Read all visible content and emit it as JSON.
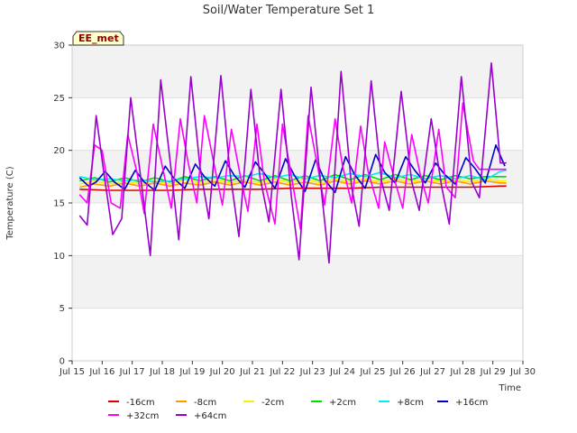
{
  "chart_data": {
    "type": "line",
    "title": "Soil/Water Temperature Set 1",
    "xlabel": "Time",
    "ylabel": "Temperature (C)",
    "badge": "EE_met",
    "xlim": [
      15,
      30
    ],
    "ylim": [
      0,
      30
    ],
    "x_ticks": [
      15,
      16,
      17,
      18,
      19,
      20,
      21,
      22,
      23,
      24,
      25,
      26,
      27,
      28,
      29,
      30
    ],
    "x_tick_labels": [
      "Jul 15",
      "Jul 16",
      "Jul 17",
      "Jul 18",
      "Jul 19",
      "Jul 20",
      "Jul 21",
      "Jul 22",
      "Jul 23",
      "Jul 24",
      "Jul 25",
      "Jul 26",
      "Jul 27",
      "Jul 28",
      "Jul 29",
      "Jul 30"
    ],
    "y_ticks": [
      0,
      5,
      10,
      15,
      20,
      25,
      30
    ],
    "y_tick_labels": [
      "0",
      "5",
      "10",
      "15",
      "20",
      "25",
      "30"
    ],
    "banded_background": true,
    "legend_placement": "bottom",
    "series": [
      {
        "name": "-16cm",
        "color": "#dd0000",
        "x": [
          15.25,
          16.25,
          17.25,
          18.25,
          19.25,
          20.25,
          21.25,
          22.25,
          23.25,
          24.25,
          25.25,
          26.25,
          27.25,
          28.25,
          29.25,
          29.45
        ],
        "y": [
          16.3,
          16.2,
          16.2,
          16.2,
          16.3,
          16.3,
          16.3,
          16.4,
          16.4,
          16.4,
          16.5,
          16.5,
          16.5,
          16.5,
          16.6,
          16.6
        ]
      },
      {
        "name": "-8cm",
        "color": "#ff9900",
        "x": [
          15.25,
          15.75,
          16.25,
          16.75,
          17.25,
          17.75,
          18.25,
          18.75,
          19.25,
          19.75,
          20.25,
          20.75,
          21.25,
          21.75,
          22.25,
          22.75,
          23.25,
          23.75,
          24.25,
          24.75,
          25.25,
          25.75,
          26.25,
          26.75,
          27.25,
          27.75,
          28.25,
          28.75,
          29.25,
          29.45
        ],
        "y": [
          16.5,
          16.8,
          16.6,
          16.9,
          16.6,
          16.9,
          16.6,
          16.9,
          16.7,
          17.0,
          16.7,
          17.0,
          16.7,
          17.0,
          16.7,
          17.0,
          16.7,
          17.1,
          16.8,
          17.1,
          16.8,
          17.1,
          16.8,
          17.1,
          16.8,
          17.1,
          16.8,
          17.1,
          16.9,
          16.9
        ]
      },
      {
        "name": "-2cm",
        "color": "#ffee00",
        "x": [
          15.25,
          15.75,
          16.25,
          16.75,
          17.25,
          17.75,
          18.25,
          18.75,
          19.25,
          19.75,
          20.25,
          20.75,
          21.25,
          21.75,
          22.25,
          22.75,
          23.25,
          23.75,
          24.25,
          24.75,
          25.25,
          25.75,
          26.25,
          26.75,
          27.25,
          27.75,
          28.25,
          28.75,
          29.25,
          29.45
        ],
        "y": [
          16.8,
          17.1,
          16.8,
          17.1,
          16.8,
          17.1,
          16.8,
          17.2,
          16.9,
          17.2,
          16.9,
          17.2,
          16.9,
          17.3,
          16.9,
          17.3,
          16.9,
          17.3,
          17.0,
          17.3,
          17.0,
          17.3,
          17.0,
          17.3,
          17.0,
          17.3,
          17.0,
          17.3,
          17.1,
          17.1
        ]
      },
      {
        "name": "+2cm",
        "color": "#00dd00",
        "x": [
          15.25,
          15.75,
          16.25,
          16.75,
          17.25,
          17.75,
          18.25,
          18.75,
          19.25,
          19.75,
          20.25,
          20.75,
          21.25,
          21.75,
          22.25,
          22.75,
          23.25,
          23.75,
          24.25,
          24.75,
          25.25,
          25.75,
          26.25,
          26.75,
          27.25,
          27.75,
          28.25,
          28.75,
          29.25,
          29.45
        ],
        "y": [
          17.1,
          17.4,
          17.0,
          17.4,
          17.0,
          17.4,
          17.0,
          17.5,
          17.1,
          17.5,
          17.1,
          17.6,
          17.1,
          17.6,
          17.1,
          17.6,
          17.1,
          17.7,
          17.2,
          17.7,
          17.2,
          17.7,
          17.2,
          17.6,
          17.2,
          17.6,
          17.3,
          17.5,
          17.5,
          17.5
        ]
      },
      {
        "name": "+8cm",
        "color": "#00eeee",
        "x": [
          15.25,
          15.75,
          16.25,
          16.75,
          17.25,
          17.75,
          18.25,
          18.75,
          19.25,
          19.75,
          20.25,
          20.75,
          21.25,
          21.75,
          22.25,
          22.75,
          23.25,
          23.75,
          24.25,
          24.75,
          25.25,
          25.75,
          26.25,
          26.75,
          27.25,
          27.75,
          28.25,
          28.75,
          29.25,
          29.45
        ],
        "y": [
          17.5,
          17.2,
          17.3,
          17.1,
          17.2,
          17.0,
          17.1,
          17.3,
          17.5,
          17.4,
          17.6,
          17.5,
          17.8,
          17.4,
          17.7,
          17.3,
          17.6,
          17.4,
          17.8,
          17.5,
          17.9,
          17.4,
          17.7,
          17.3,
          17.6,
          17.3,
          17.6,
          17.2,
          18.0,
          18.1
        ]
      },
      {
        "name": "+16cm",
        "color": "#0000cc",
        "x": [
          15.25,
          15.55,
          15.8,
          16.1,
          16.4,
          16.75,
          17.1,
          17.4,
          17.75,
          18.1,
          18.4,
          18.75,
          19.1,
          19.4,
          19.75,
          20.1,
          20.4,
          20.75,
          21.1,
          21.4,
          21.75,
          22.1,
          22.4,
          22.75,
          23.1,
          23.4,
          23.75,
          24.1,
          24.4,
          24.75,
          25.1,
          25.4,
          25.75,
          26.1,
          26.4,
          26.75,
          27.1,
          27.4,
          27.75,
          28.1,
          28.4,
          28.75,
          29.1,
          29.4
        ],
        "y": [
          17.4,
          16.6,
          17.0,
          18.0,
          17.0,
          16.3,
          18.1,
          17.0,
          16.2,
          18.5,
          17.3,
          16.4,
          18.7,
          17.5,
          16.6,
          19.0,
          17.6,
          16.5,
          18.9,
          17.8,
          16.4,
          19.2,
          17.6,
          16.1,
          19.1,
          17.2,
          16.0,
          19.4,
          17.7,
          16.4,
          19.6,
          17.9,
          16.9,
          19.4,
          18.1,
          16.9,
          18.8,
          17.7,
          16.8,
          19.3,
          18.3,
          16.9,
          20.5,
          18.5
        ]
      },
      {
        "name": "+32cm",
        "color": "#ff00ff",
        "x": [
          15.25,
          15.5,
          15.75,
          16.0,
          16.3,
          16.6,
          16.85,
          17.15,
          17.4,
          17.7,
          18.0,
          18.3,
          18.6,
          18.85,
          19.15,
          19.4,
          19.7,
          20.0,
          20.3,
          20.6,
          20.85,
          21.15,
          21.4,
          21.75,
          22.0,
          22.3,
          22.6,
          22.85,
          23.2,
          23.4,
          23.75,
          24.0,
          24.3,
          24.6,
          24.85,
          25.2,
          25.4,
          25.75,
          26.0,
          26.3,
          26.6,
          26.85,
          27.2,
          27.45,
          27.75,
          28.0,
          28.35,
          28.55,
          28.8,
          29.0,
          29.2,
          29.45
        ],
        "y": [
          15.8,
          15.0,
          20.5,
          20.0,
          15.0,
          14.5,
          21.5,
          18.0,
          14.0,
          22.5,
          18.5,
          14.5,
          23.0,
          19.0,
          15.0,
          23.3,
          19.0,
          14.8,
          22.0,
          17.5,
          14.2,
          22.5,
          17.0,
          13.0,
          22.5,
          17.5,
          12.5,
          23.3,
          18.0,
          14.8,
          23.0,
          18.5,
          15.0,
          22.3,
          18.0,
          14.5,
          20.8,
          17.0,
          14.5,
          21.5,
          17.5,
          15.0,
          22.0,
          16.5,
          15.5,
          24.5,
          19.0,
          18.2,
          18.2,
          18.2,
          18.2,
          18.2
        ]
      },
      {
        "name": "+64cm",
        "color": "#9900cc",
        "x": [
          15.25,
          15.5,
          15.8,
          16.05,
          16.35,
          16.65,
          16.95,
          17.3,
          17.6,
          17.95,
          18.3,
          18.55,
          18.95,
          19.25,
          19.55,
          19.95,
          20.25,
          20.55,
          20.95,
          21.25,
          21.55,
          21.95,
          22.3,
          22.55,
          22.95,
          23.3,
          23.55,
          23.95,
          24.3,
          24.55,
          24.95,
          25.3,
          25.55,
          25.95,
          26.3,
          26.55,
          26.95,
          27.3,
          27.55,
          27.95,
          28.3,
          28.55,
          28.95,
          29.25,
          29.45
        ],
        "y": [
          13.8,
          12.9,
          23.3,
          18.0,
          12.0,
          13.5,
          25.0,
          17.0,
          10.0,
          26.7,
          18.0,
          11.5,
          27.0,
          18.5,
          13.5,
          27.1,
          18.0,
          11.8,
          25.8,
          17.5,
          13.2,
          25.8,
          15.5,
          9.6,
          26.0,
          16.0,
          9.3,
          27.5,
          16.5,
          12.8,
          26.6,
          17.0,
          14.3,
          25.6,
          17.0,
          14.3,
          23.0,
          16.5,
          13.0,
          27.0,
          17.0,
          15.5,
          28.3,
          18.8,
          18.8
        ]
      }
    ]
  }
}
